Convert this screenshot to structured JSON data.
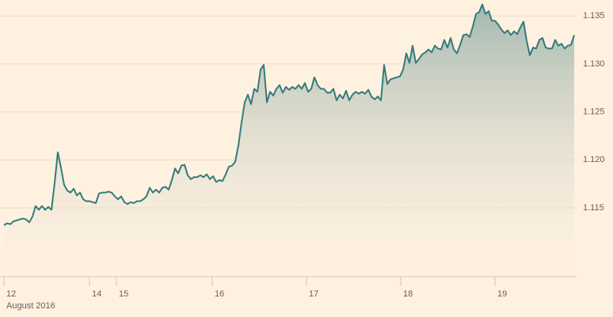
{
  "chart_data": {
    "type": "area",
    "xlabel": "August 2016",
    "color": "#347a7c",
    "grid": true,
    "xlim": [
      0,
      181
    ],
    "ylim": [
      1.108,
      1.1366
    ],
    "yticks": [
      1.115,
      {
        "value": 1.12,
        "label": "1.120"
      },
      1.125,
      {
        "value": 1.13,
        "label": "1.130"
      },
      1.135
    ],
    "xticks": [
      {
        "value": 0,
        "label": "12"
      },
      {
        "value": 27,
        "label": "14"
      },
      {
        "value": 35.5,
        "label": "15"
      },
      {
        "value": 65.75,
        "label": "16"
      },
      {
        "value": 95.5,
        "label": "17"
      },
      {
        "value": 125.25,
        "label": "18"
      },
      {
        "value": 155,
        "label": "19"
      }
    ],
    "values": [
      1.1132,
      1.1134,
      1.1133,
      1.1136,
      1.1137,
      1.1138,
      1.1139,
      1.1138,
      1.1135,
      1.1141,
      1.1152,
      1.1148,
      1.1152,
      1.1148,
      1.1151,
      1.1148,
      1.1176,
      1.1208,
      1.1192,
      1.1174,
      1.1168,
      1.1166,
      1.117,
      1.1163,
      1.1166,
      1.1159,
      1.1157,
      1.1157,
      1.1156,
      1.1155,
      1.1165,
      1.1166,
      1.1166,
      1.1167,
      1.1166,
      1.1162,
      1.1159,
      1.1162,
      1.1156,
      1.1154,
      1.1156,
      1.1155,
      1.1157,
      1.1157,
      1.1159,
      1.1162,
      1.1171,
      1.1166,
      1.1169,
      1.1166,
      1.1171,
      1.1172,
      1.1169,
      1.1179,
      1.1191,
      1.1186,
      1.1194,
      1.1195,
      1.1184,
      1.118,
      1.1182,
      1.1182,
      1.1184,
      1.1182,
      1.1185,
      1.118,
      1.1183,
      1.1177,
      1.1179,
      1.1178,
      1.1185,
      1.1193,
      1.1194,
      1.1198,
      1.1215,
      1.1239,
      1.126,
      1.1268,
      1.1258,
      1.1274,
      1.1271,
      1.1294,
      1.1299,
      1.126,
      1.1271,
      1.1267,
      1.1274,
      1.1278,
      1.127,
      1.1276,
      1.1273,
      1.1276,
      1.1274,
      1.1278,
      1.1274,
      1.128,
      1.1271,
      1.1274,
      1.1286,
      1.1278,
      1.1274,
      1.1274,
      1.127,
      1.127,
      1.1274,
      1.1262,
      1.1268,
      1.1264,
      1.1272,
      1.1262,
      1.1268,
      1.1271,
      1.1269,
      1.1271,
      1.1269,
      1.1273,
      1.1266,
      1.1263,
      1.1266,
      1.1262,
      1.1299,
      1.1279,
      1.1284,
      1.1285,
      1.1286,
      1.1287,
      1.1294,
      1.1311,
      1.1301,
      1.1319,
      1.1301,
      1.1305,
      1.131,
      1.1312,
      1.1315,
      1.1312,
      1.1319,
      1.1316,
      1.1315,
      1.1325,
      1.1317,
      1.1327,
      1.1315,
      1.1311,
      1.132,
      1.133,
      1.1331,
      1.1328,
      1.1339,
      1.1352,
      1.1354,
      1.1362,
      1.1352,
      1.1355,
      1.1345,
      1.1345,
      1.1341,
      1.1336,
      1.1332,
      1.1335,
      1.133,
      1.1334,
      1.1331,
      1.1338,
      1.1344,
      1.1324,
      1.1309,
      1.1317,
      1.1316,
      1.1325,
      1.1327,
      1.1317,
      1.1316,
      1.1316,
      1.1325,
      1.1319,
      1.1321,
      1.1316,
      1.1319,
      1.132,
      1.133
    ]
  }
}
